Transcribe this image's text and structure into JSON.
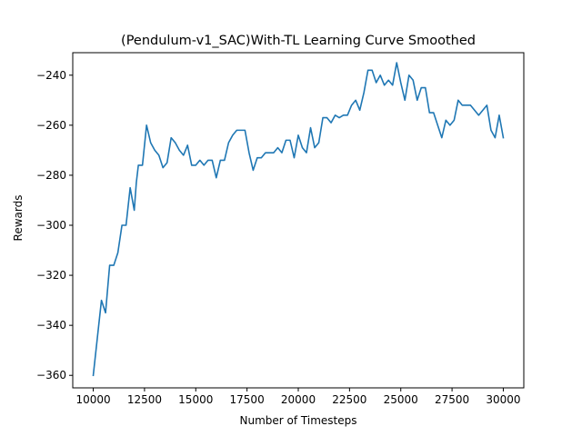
{
  "chart_data": {
    "type": "line",
    "title": "(Pendulum-v1_SAC)With-TL Learning Curve Smoothed",
    "xlabel": "Number of Timesteps",
    "ylabel": "Rewards",
    "xlim": [
      9000,
      31000
    ],
    "ylim": [
      -365,
      -231
    ],
    "xticks": [
      10000,
      12500,
      15000,
      17500,
      20000,
      22500,
      25000,
      27500,
      30000
    ],
    "yticks": [
      -360,
      -340,
      -320,
      -300,
      -280,
      -260,
      -240
    ],
    "xtick_labels": [
      "10000",
      "12500",
      "15000",
      "17500",
      "20000",
      "22500",
      "25000",
      "27500",
      "30000"
    ],
    "ytick_labels": [
      "−360",
      "−340",
      "−320",
      "−300",
      "−280",
      "−260",
      "−240"
    ],
    "grid": false,
    "line_color": "#1f77b4",
    "series": [
      {
        "x": [
          10000,
          10200,
          10400,
          10600,
          10800,
          11000,
          11200,
          11400,
          11600,
          11800,
          12000,
          12100,
          12200,
          12400,
          12600,
          12800,
          13000,
          13200,
          13400,
          13600,
          13800,
          14000,
          14200,
          14400,
          14600,
          14800,
          15000,
          15200,
          15400,
          15600,
          15800,
          16000,
          16200,
          16400,
          16600,
          16800,
          17000,
          17200,
          17400,
          17600,
          17800,
          18000,
          18200,
          18400,
          18600,
          18800,
          19000,
          19200,
          19400,
          19600,
          19800,
          20000,
          20200,
          20400,
          20600,
          20800,
          21000,
          21200,
          21400,
          21600,
          21800,
          22000,
          22200,
          22400,
          22600,
          22800,
          23000,
          23200,
          23400,
          23600,
          23800,
          24000,
          24200,
          24400,
          24600,
          24800,
          25000,
          25200,
          25400,
          25600,
          25800,
          26000,
          26200,
          26400,
          26600,
          26800,
          27000,
          27200,
          27400,
          27600,
          27800,
          28000,
          28200,
          28400,
          28600,
          28800,
          29000,
          29200,
          29400,
          29600,
          29800,
          30000
        ],
        "values": [
          -360,
          -345,
          -330,
          -335,
          -316,
          -316,
          -311,
          -300,
          -300,
          -285,
          -294,
          -283,
          -276,
          -276,
          -260,
          -267,
          -270,
          -272,
          -277,
          -275,
          -265,
          -267,
          -270,
          -272,
          -268,
          -276,
          -276,
          -274,
          -276,
          -274,
          -274,
          -281,
          -274,
          -274,
          -267,
          -264,
          -262,
          -262,
          -262,
          -271,
          -278,
          -273,
          -273,
          -271,
          -271,
          -271,
          -269,
          -271,
          -266,
          -266,
          -273,
          -264,
          -269,
          -271,
          -261,
          -269,
          -267,
          -257,
          -257,
          -259,
          -256,
          -257,
          -256,
          -256,
          -252,
          -250,
          -254,
          -247,
          -238,
          -238,
          -243,
          -240,
          -244,
          -242,
          -244,
          -235,
          -243,
          -250,
          -240,
          -242,
          -250,
          -245,
          -245,
          -255,
          -255,
          -260,
          -265,
          -258,
          -260,
          -258,
          -250,
          -252,
          -252,
          -252,
          -254,
          -256,
          -254,
          -252,
          -262,
          -265,
          -256,
          -265
        ]
      }
    ]
  }
}
